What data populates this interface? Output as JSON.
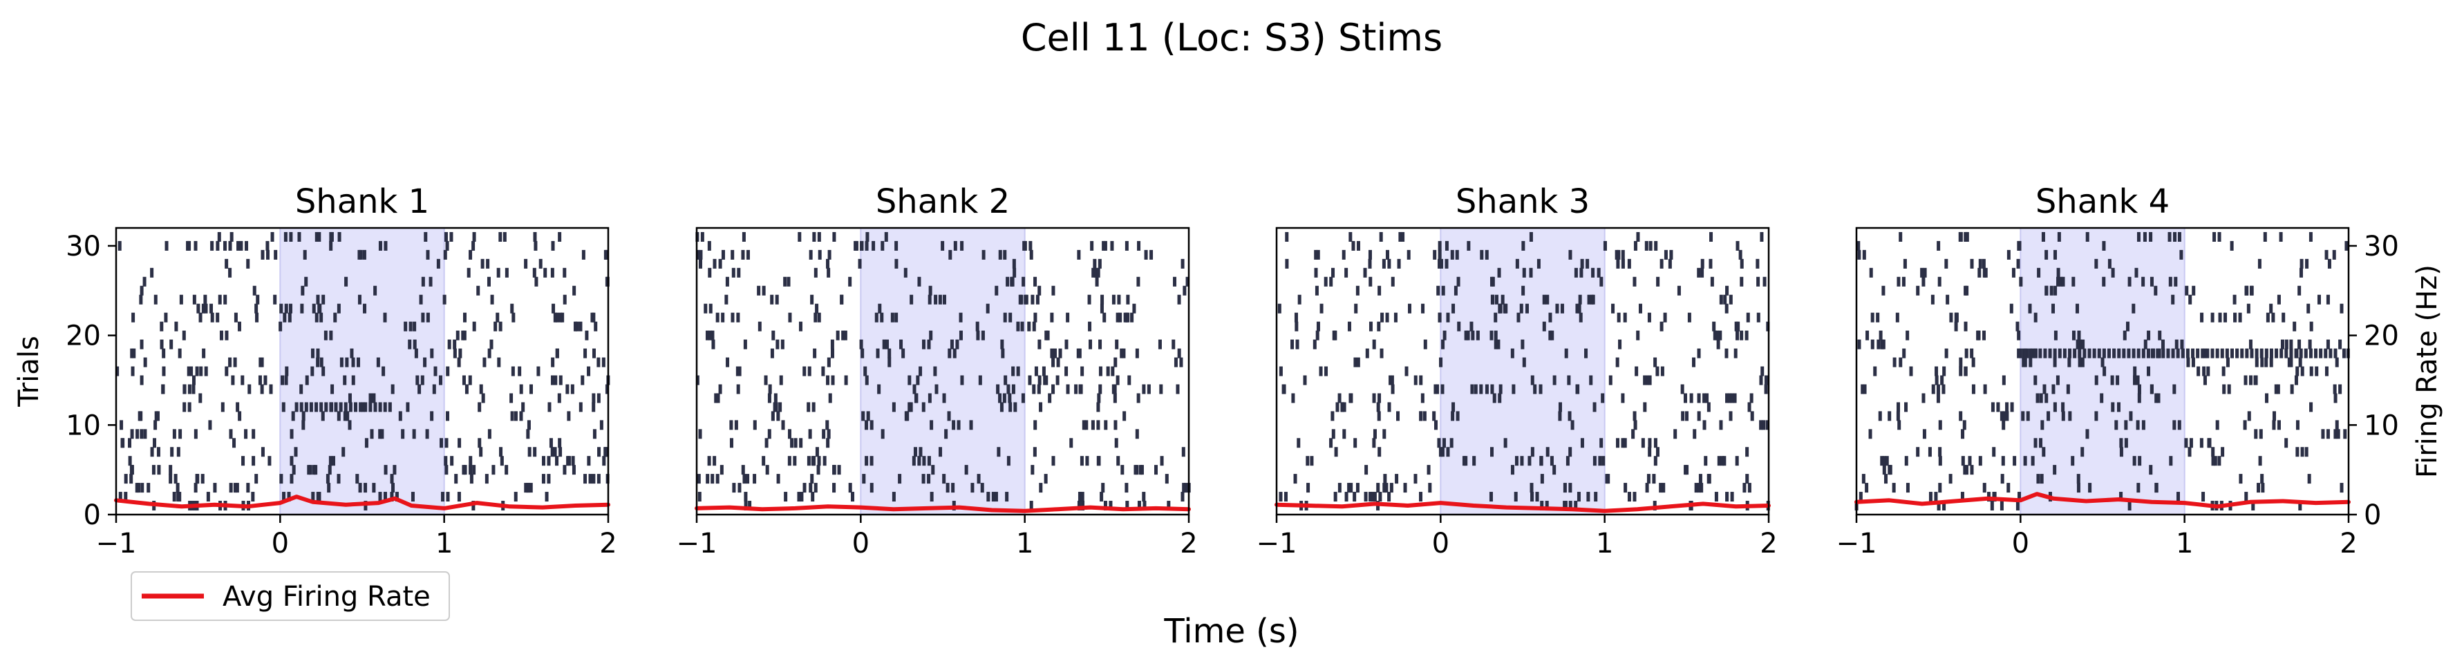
{
  "figure": {
    "title": "Cell 11 (Loc: S3) Stims",
    "xlabel": "Time (s)",
    "legend": {
      "label": "Avg Firing Rate",
      "placement": "lower-left, below first panel"
    }
  },
  "chart_data": [
    {
      "type": "raster",
      "title": "Shank 1",
      "xlabel": "",
      "ylabel": "Trials",
      "y2label": "",
      "xlim": [
        -1,
        2
      ],
      "ylim": [
        0,
        32
      ],
      "y2lim": [
        0,
        32
      ],
      "xticks": [
        "−1",
        "0",
        "1",
        "2"
      ],
      "yticks": [
        "0",
        "10",
        "20",
        "30"
      ],
      "y2ticks": [],
      "stim_window": [
        0,
        1
      ],
      "n_trials": 31,
      "dense_trial": {
        "trial": 12,
        "t_start": 0.1,
        "t_end": 0.7
      },
      "firing_rate": {
        "name": "Avg Firing Rate",
        "t": [
          -1,
          -0.8,
          -0.6,
          -0.4,
          -0.2,
          0,
          0.1,
          0.2,
          0.4,
          0.6,
          0.7,
          0.8,
          1.0,
          1.2,
          1.4,
          1.6,
          1.8,
          2.0
        ],
        "hz": [
          1.6,
          1.2,
          0.9,
          1.1,
          0.9,
          1.3,
          2.0,
          1.4,
          1.1,
          1.3,
          1.8,
          1.0,
          0.7,
          1.3,
          0.9,
          0.8,
          1.0,
          1.1
        ]
      }
    },
    {
      "type": "raster",
      "title": "Shank 2",
      "xlabel": "",
      "ylabel": "",
      "y2label": "",
      "xlim": [
        -1,
        2
      ],
      "ylim": [
        0,
        32
      ],
      "y2lim": [
        0,
        32
      ],
      "xticks": [
        "−1",
        "0",
        "1",
        "2"
      ],
      "yticks": [],
      "y2ticks": [],
      "stim_window": [
        0,
        1
      ],
      "n_trials": 31,
      "firing_rate": {
        "name": "Avg Firing Rate",
        "t": [
          -1,
          -0.8,
          -0.6,
          -0.4,
          -0.2,
          0,
          0.2,
          0.4,
          0.6,
          0.8,
          1.0,
          1.2,
          1.4,
          1.6,
          1.8,
          2.0
        ],
        "hz": [
          0.7,
          0.8,
          0.6,
          0.7,
          0.9,
          0.8,
          0.6,
          0.7,
          0.8,
          0.5,
          0.4,
          0.6,
          0.8,
          0.6,
          0.7,
          0.6
        ]
      }
    },
    {
      "type": "raster",
      "title": "Shank 3",
      "xlabel": "",
      "ylabel": "",
      "y2label": "",
      "xlim": [
        -1,
        2
      ],
      "ylim": [
        0,
        32
      ],
      "y2lim": [
        0,
        32
      ],
      "xticks": [
        "−1",
        "0",
        "1",
        "2"
      ],
      "yticks": [],
      "y2ticks": [],
      "stim_window": [
        0,
        1
      ],
      "n_trials": 31,
      "firing_rate": {
        "name": "Avg Firing Rate",
        "t": [
          -1,
          -0.8,
          -0.6,
          -0.4,
          -0.2,
          0,
          0.2,
          0.4,
          0.6,
          0.8,
          1.0,
          1.2,
          1.4,
          1.6,
          1.8,
          2.0
        ],
        "hz": [
          1.1,
          1.0,
          0.9,
          1.2,
          1.0,
          1.3,
          1.0,
          0.8,
          0.7,
          0.6,
          0.4,
          0.6,
          0.9,
          1.2,
          0.9,
          1.0
        ]
      }
    },
    {
      "type": "raster",
      "title": "Shank 4",
      "xlabel": "",
      "ylabel": "",
      "y2label": "Firing Rate (Hz)",
      "xlim": [
        -1,
        2
      ],
      "ylim": [
        0,
        32
      ],
      "y2lim": [
        0,
        32
      ],
      "xticks": [
        "−1",
        "0",
        "1",
        "2"
      ],
      "yticks": [],
      "y2ticks": [
        "0",
        "10",
        "20",
        "30"
      ],
      "stim_window": [
        0,
        1
      ],
      "n_trials": 31,
      "dense_trial": {
        "trial": 18,
        "t_start": 0.0,
        "t_end": 1.95
      },
      "firing_rate": {
        "name": "Avg Firing Rate",
        "t": [
          -1,
          -0.8,
          -0.6,
          -0.4,
          -0.2,
          0,
          0.1,
          0.2,
          0.4,
          0.6,
          0.8,
          1.0,
          1.2,
          1.4,
          1.6,
          1.8,
          2.0
        ],
        "hz": [
          1.4,
          1.6,
          1.2,
          1.5,
          1.8,
          1.6,
          2.3,
          1.8,
          1.5,
          1.7,
          1.4,
          1.3,
          0.9,
          1.4,
          1.5,
          1.3,
          1.4
        ]
      }
    }
  ],
  "colors": {
    "spike": "#2b2f45",
    "firing_rate": "#e8141a",
    "stim_fill": "#e3e3fb",
    "stim_edge": "#c9c9f2",
    "axis": "#000000"
  }
}
